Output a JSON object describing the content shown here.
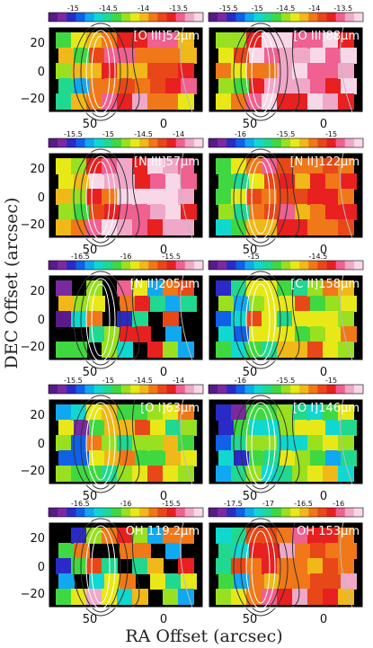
{
  "figure": {
    "xlabel": "RA Offset (arcsec)",
    "ylabel": "DEC Offset (arcsec)",
    "y_ticks": [
      "20",
      "0",
      "−20"
    ],
    "x_ticks": [
      "50",
      "0"
    ],
    "panels": [
      {
        "title": "[O III]52μm",
        "colorbar_ticks": [
          "-15",
          "-14.5",
          "-14",
          "-13.5"
        ],
        "palette": "high"
      },
      {
        "title": "[O III]88μm",
        "colorbar_ticks": [
          "-15.5",
          "-15",
          "-14.5",
          "-14",
          "-13.5"
        ],
        "palette": "pink"
      },
      {
        "title": "[N III]57μm",
        "colorbar_ticks": [
          "-15.5",
          "-15",
          "-14.5",
          "-14"
        ],
        "palette": "pink"
      },
      {
        "title": "[N II]122μm",
        "colorbar_ticks": [
          "-16",
          "-15.5",
          "-15"
        ],
        "palette": "orange"
      },
      {
        "title": "[N II]205μm",
        "colorbar_ticks": [
          "-16.5",
          "-16",
          "-15.5"
        ],
        "palette": "mixed"
      },
      {
        "title": "[C II]158μm",
        "colorbar_ticks": [
          "-15",
          "-14.5"
        ],
        "palette": "mid"
      },
      {
        "title": "[O I]63μm",
        "colorbar_ticks": [
          "-15.5",
          "-15",
          "-14.5",
          "-14"
        ],
        "palette": "mid"
      },
      {
        "title": "[O I]146μm",
        "colorbar_ticks": [
          "-16",
          "-15.5",
          "-15"
        ],
        "palette": "midlow"
      },
      {
        "title": "OH 119.2μm",
        "colorbar_ticks": [
          "-16.5",
          "-16",
          "-15.5"
        ],
        "palette": "mixed"
      },
      {
        "title": "OH 153μm",
        "colorbar_ticks": [
          "-17.5",
          "-17",
          "-16.5",
          "-16"
        ],
        "palette": "high"
      }
    ],
    "colors": {
      "background": "#000000",
      "contour_dark": "#333333",
      "contour_light": "#bbbbbb"
    }
  }
}
